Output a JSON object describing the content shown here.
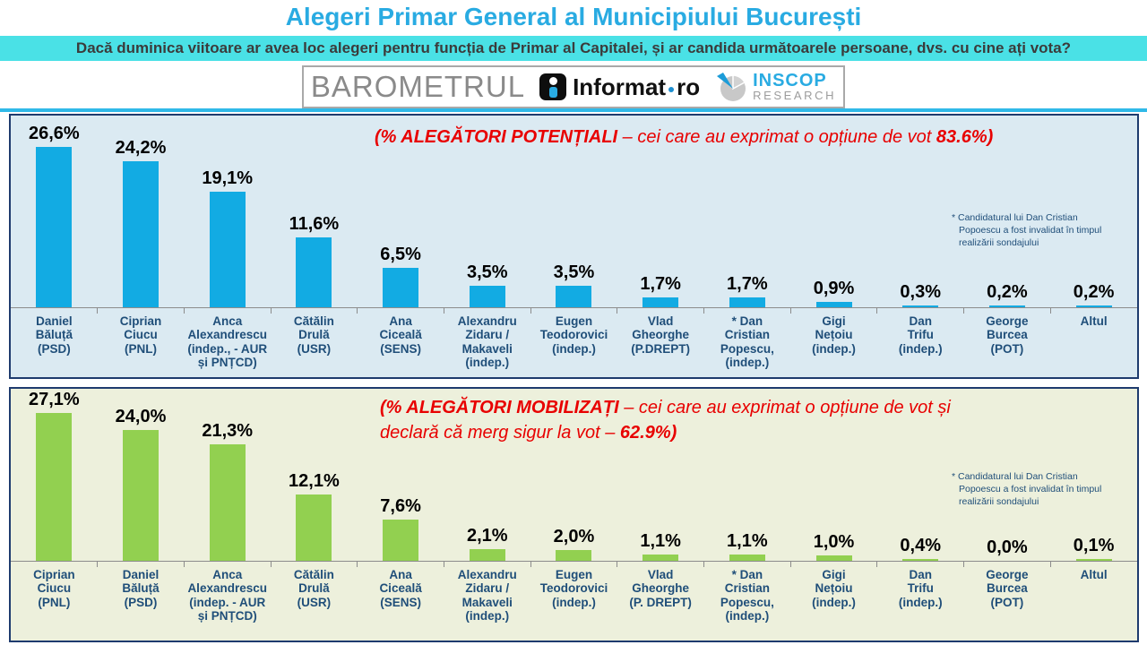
{
  "page": {
    "title": "Alegeri Primar General al Municipiului București",
    "question": "Dacă duminica viitoare ar avea loc alegeri pentru funcția de Primar al Capitalei, și ar candida următoarele persoane, dvs. cu cine ați vota?"
  },
  "brand": {
    "barometrul": "BAROMETRUL",
    "informat_name": "Informat",
    "informat_tld": "ro",
    "inscop_name": "INSCOP",
    "inscop_sub": "RESEARCH"
  },
  "colors": {
    "title_blue": "#29ABE2",
    "band_bg": "#4AE1E6",
    "panel_border": "#1E3B6E",
    "label_navy": "#1F4E79",
    "annotation_red": "#E80000",
    "bar_blue": "#12ABE3",
    "bar_green": "#92D050",
    "panel_blue_bg": "#DBEAF2",
    "panel_green_bg": "#EDF0DC"
  },
  "chart_data": [
    {
      "type": "bar",
      "title": "(% ALEGĂTORI POTENȚIALI – cei care au exprimat o opțiune de vot 83.6%)",
      "title_lead": "(% ALEGĂTORI POTENȚIALI",
      "title_mid": " – cei care au exprimat o opțiune de vot ",
      "title_tail": "83.6%)",
      "categories": [
        "Daniel Băluță (PSD)",
        "Ciprian Ciucu (PNL)",
        "Anca Alexandrescu (indep., - AUR și PNȚCD)",
        "Cătălin Drulă (USR)",
        "Ana Ciceală (SENS)",
        "Alexandru Zidaru / Makaveli (indep.)",
        "Eugen Teodorovici (indep.)",
        "Vlad Gheorghe (P.DREPT)",
        "* Dan Cristian Popescu, (indep.)",
        "Gigi Nețoiu (indep.)",
        "Dan Trifu (indep.)",
        "George Burcea (POT)",
        "Altul"
      ],
      "categories_display": [
        "Daniel\nBăluță\n(PSD)",
        "Ciprian\nCiucu\n(PNL)",
        "Anca\nAlexandrescu\n(indep., - AUR\nși PNȚCD)",
        "Cătălin\nDrulă\n(USR)",
        "Ana\nCiceală\n(SENS)",
        "Alexandru\nZidaru /\nMakaveli\n(indep.)",
        "Eugen\nTeodorovici\n(indep.)",
        "Vlad\nGheorghe\n(P.DREPT)",
        "* Dan\nCristian\nPopescu,\n(indep.)",
        "Gigi\nNețoiu\n(indep.)",
        "Dan\nTrifu\n(indep.)",
        "George\nBurcea\n(POT)",
        "Altul"
      ],
      "values": [
        26.6,
        24.2,
        19.1,
        11.6,
        6.5,
        3.5,
        3.5,
        1.7,
        1.7,
        0.9,
        0.3,
        0.2,
        0.2
      ],
      "value_labels": [
        "26,6%",
        "24,2%",
        "19,1%",
        "11,6%",
        "6,5%",
        "3,5%",
        "3,5%",
        "1,7%",
        "1,7%",
        "0,9%",
        "0,3%",
        "0,2%",
        "0,2%"
      ],
      "footnote": "* Candidatural lui Dan Cristian\nPopoescu a fost invalidat în timpul\nrealizării sondajului",
      "bar_color": "#12ABE3",
      "panel_bg": "#DBEAF2",
      "ylim": [
        0,
        30
      ],
      "grid": false,
      "legend": "none",
      "xlabel": "",
      "ylabel": ""
    },
    {
      "type": "bar",
      "title": "(% ALEGĂTORI MOBILIZAȚI – cei care au exprimat o opțiune de vot și declară că merg sigur la vot – 62.9%)",
      "title_lead": "(% ALEGĂTORI MOBILIZAȚI",
      "title_mid": " – cei care au exprimat o opțiune de vot și\ndeclară că merg sigur la vot – ",
      "title_tail": "62.9%)",
      "categories": [
        "Ciprian Ciucu (PNL)",
        "Daniel Băluță (PSD)",
        "Anca Alexandrescu (indep. - AUR și PNȚCD)",
        "Cătălin Drulă (USR)",
        "Ana Ciceală (SENS)",
        "Alexandru Zidaru / Makaveli (indep.)",
        "Eugen Teodorovici (indep.)",
        "Vlad Gheorghe (P. DREPT)",
        "* Dan Cristian Popescu, (indep.)",
        "Gigi Nețoiu (indep.)",
        "Dan Trifu (indep.)",
        "George Burcea (POT)",
        "Altul"
      ],
      "categories_display": [
        "Ciprian\nCiucu\n(PNL)",
        "Daniel\nBăluță\n(PSD)",
        "Anca\nAlexandrescu\n(indep. - AUR\nși PNȚCD)",
        "Cătălin\nDrulă\n(USR)",
        "Ana\nCiceală\n(SENS)",
        "Alexandru\nZidaru /\nMakaveli\n(indep.)",
        "Eugen\nTeodorovici\n(indep.)",
        "Vlad\nGheorghe\n(P. DREPT)",
        "* Dan\nCristian\nPopescu,\n(indep.)",
        "Gigi\nNețoiu\n(indep.)",
        "Dan\nTrifu\n(indep.)",
        "George\nBurcea\n(POT)",
        "Altul"
      ],
      "values": [
        27.1,
        24.0,
        21.3,
        12.1,
        7.6,
        2.1,
        2.0,
        1.1,
        1.1,
        1.0,
        0.4,
        0.0,
        0.1
      ],
      "value_labels": [
        "27,1%",
        "24,0%",
        "21,3%",
        "12,1%",
        "7,6%",
        "2,1%",
        "2,0%",
        "1,1%",
        "1,1%",
        "1,0%",
        "0,4%",
        "0,0%",
        "0,1%"
      ],
      "footnote": "* Candidatural lui Dan Cristian\nPopoescu a fost invalidat în timpul\nrealizării sondajului",
      "bar_color": "#92D050",
      "panel_bg": "#EDF0DC",
      "ylim": [
        0,
        30
      ],
      "grid": false,
      "legend": "none",
      "xlabel": "",
      "ylabel": ""
    }
  ]
}
